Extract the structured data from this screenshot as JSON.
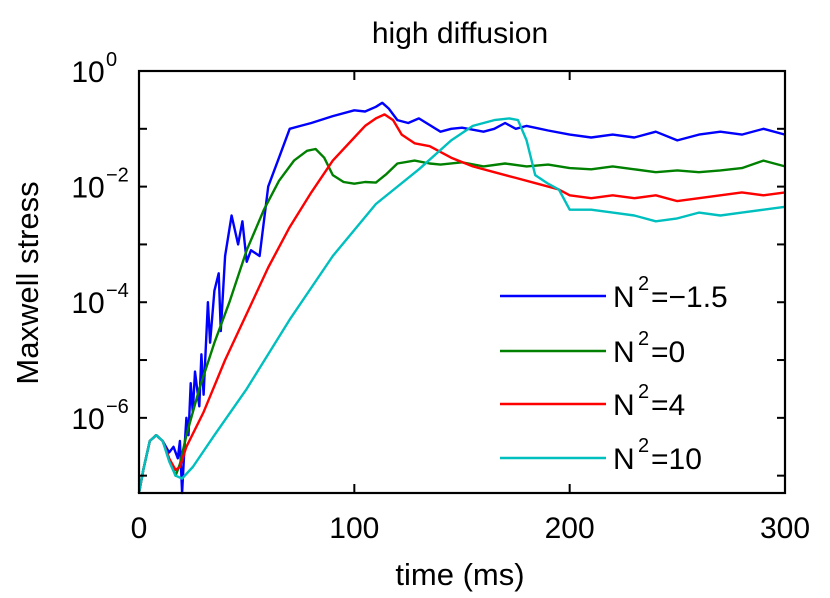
{
  "chart_data": {
    "type": "line",
    "title": "high diffusion",
    "xlabel": "time (ms)",
    "ylabel": "Maxwell stress",
    "xlim": [
      0,
      300
    ],
    "ylim_log10": [
      -7.3,
      0
    ],
    "y_scale": "log",
    "grid": false,
    "legend_position": "bottom-right",
    "x_ticks": [
      {
        "value": 0,
        "label": "0"
      },
      {
        "value": 100,
        "label": "100"
      },
      {
        "value": 200,
        "label": "200"
      },
      {
        "value": 300,
        "label": "300"
      }
    ],
    "y_ticks": [
      {
        "exp": 0,
        "base": "10",
        "sup": "0"
      },
      {
        "exp": -2,
        "base": "10",
        "sup": "−2"
      },
      {
        "exp": -4,
        "base": "10",
        "sup": "−4"
      },
      {
        "exp": -6,
        "base": "10",
        "sup": "−6"
      }
    ],
    "series": [
      {
        "name": "N2=-1.5",
        "legend_base": "N",
        "legend_sup": "2",
        "legend_rest": "=−1.5",
        "color": "#0000ff",
        "points_log10": [
          [
            0,
            -7.3
          ],
          [
            2,
            -6.9
          ],
          [
            5,
            -6.4
          ],
          [
            8,
            -6.3
          ],
          [
            11,
            -6.4
          ],
          [
            14,
            -6.6
          ],
          [
            16,
            -6.5
          ],
          [
            18,
            -6.7
          ],
          [
            19,
            -6.4
          ],
          [
            20,
            -7.3
          ],
          [
            21,
            -6.6
          ],
          [
            22,
            -6.0
          ],
          [
            23,
            -6.3
          ],
          [
            24,
            -5.4
          ],
          [
            25,
            -5.9
          ],
          [
            26,
            -5.2
          ],
          [
            28,
            -5.8
          ],
          [
            29,
            -4.9
          ],
          [
            30,
            -5.6
          ],
          [
            32,
            -4.0
          ],
          [
            33,
            -4.7
          ],
          [
            35,
            -3.8
          ],
          [
            37,
            -3.5
          ],
          [
            38,
            -4.5
          ],
          [
            40,
            -3.2
          ],
          [
            43,
            -2.5
          ],
          [
            46,
            -3.0
          ],
          [
            48,
            -2.6
          ],
          [
            50,
            -3.3
          ],
          [
            52,
            -3.1
          ],
          [
            56,
            -3.2
          ],
          [
            60,
            -2.0
          ],
          [
            65,
            -1.5
          ],
          [
            70,
            -1.0
          ],
          [
            75,
            -0.95
          ],
          [
            80,
            -0.9
          ],
          [
            90,
            -0.78
          ],
          [
            100,
            -0.68
          ],
          [
            105,
            -0.7
          ],
          [
            110,
            -0.62
          ],
          [
            113,
            -0.55
          ],
          [
            116,
            -0.65
          ],
          [
            120,
            -0.85
          ],
          [
            125,
            -0.9
          ],
          [
            130,
            -0.82
          ],
          [
            140,
            -1.05
          ],
          [
            145,
            -1.0
          ],
          [
            150,
            -0.98
          ],
          [
            160,
            -1.05
          ],
          [
            165,
            -1.0
          ],
          [
            170,
            -0.9
          ],
          [
            175,
            -1.0
          ],
          [
            180,
            -0.95
          ],
          [
            190,
            -1.03
          ],
          [
            200,
            -1.1
          ],
          [
            210,
            -1.15
          ],
          [
            220,
            -1.1
          ],
          [
            230,
            -1.15
          ],
          [
            240,
            -1.05
          ],
          [
            250,
            -1.2
          ],
          [
            260,
            -1.1
          ],
          [
            270,
            -1.05
          ],
          [
            280,
            -1.1
          ],
          [
            290,
            -1.0
          ],
          [
            300,
            -1.1
          ]
        ]
      },
      {
        "name": "N2=0",
        "legend_base": "N",
        "legend_sup": "2",
        "legend_rest": "=0",
        "color": "#008000",
        "points_log10": [
          [
            0,
            -7.3
          ],
          [
            2,
            -6.9
          ],
          [
            5,
            -6.4
          ],
          [
            8,
            -6.3
          ],
          [
            11,
            -6.4
          ],
          [
            14,
            -6.7
          ],
          [
            17,
            -7.0
          ],
          [
            19,
            -6.8
          ],
          [
            22,
            -6.3
          ],
          [
            28,
            -5.5
          ],
          [
            35,
            -4.7
          ],
          [
            42,
            -4.0
          ],
          [
            50,
            -3.1
          ],
          [
            58,
            -2.4
          ],
          [
            65,
            -1.9
          ],
          [
            72,
            -1.55
          ],
          [
            78,
            -1.38
          ],
          [
            82,
            -1.35
          ],
          [
            86,
            -1.5
          ],
          [
            90,
            -1.8
          ],
          [
            95,
            -1.92
          ],
          [
            100,
            -1.95
          ],
          [
            105,
            -1.92
          ],
          [
            110,
            -1.93
          ],
          [
            115,
            -1.78
          ],
          [
            120,
            -1.6
          ],
          [
            128,
            -1.55
          ],
          [
            135,
            -1.6
          ],
          [
            140,
            -1.62
          ],
          [
            150,
            -1.58
          ],
          [
            160,
            -1.65
          ],
          [
            170,
            -1.6
          ],
          [
            180,
            -1.65
          ],
          [
            190,
            -1.62
          ],
          [
            200,
            -1.68
          ],
          [
            210,
            -1.7
          ],
          [
            220,
            -1.65
          ],
          [
            230,
            -1.7
          ],
          [
            240,
            -1.75
          ],
          [
            250,
            -1.72
          ],
          [
            260,
            -1.75
          ],
          [
            270,
            -1.72
          ],
          [
            280,
            -1.68
          ],
          [
            290,
            -1.55
          ],
          [
            295,
            -1.6
          ],
          [
            300,
            -1.65
          ]
        ]
      },
      {
        "name": "N2=4",
        "legend_base": "N",
        "legend_sup": "2",
        "legend_rest": "=4",
        "color": "#ff0000",
        "points_log10": [
          [
            0,
            -7.3
          ],
          [
            2,
            -6.9
          ],
          [
            5,
            -6.4
          ],
          [
            8,
            -6.3
          ],
          [
            11,
            -6.4
          ],
          [
            14,
            -6.7
          ],
          [
            17,
            -6.9
          ],
          [
            19,
            -6.85
          ],
          [
            22,
            -6.5
          ],
          [
            30,
            -5.9
          ],
          [
            40,
            -5.0
          ],
          [
            50,
            -4.2
          ],
          [
            60,
            -3.4
          ],
          [
            70,
            -2.7
          ],
          [
            80,
            -2.1
          ],
          [
            90,
            -1.55
          ],
          [
            100,
            -1.15
          ],
          [
            105,
            -0.95
          ],
          [
            110,
            -0.82
          ],
          [
            114,
            -0.75
          ],
          [
            118,
            -0.85
          ],
          [
            122,
            -1.1
          ],
          [
            128,
            -1.25
          ],
          [
            135,
            -1.3
          ],
          [
            145,
            -1.5
          ],
          [
            155,
            -1.65
          ],
          [
            165,
            -1.75
          ],
          [
            175,
            -1.85
          ],
          [
            185,
            -1.95
          ],
          [
            195,
            -2.05
          ],
          [
            200,
            -2.15
          ],
          [
            210,
            -2.2
          ],
          [
            220,
            -2.15
          ],
          [
            230,
            -2.2
          ],
          [
            240,
            -2.15
          ],
          [
            250,
            -2.25
          ],
          [
            260,
            -2.2
          ],
          [
            270,
            -2.15
          ],
          [
            280,
            -2.1
          ],
          [
            290,
            -2.15
          ],
          [
            300,
            -2.1
          ]
        ]
      },
      {
        "name": "N2=10",
        "legend_base": "N",
        "legend_sup": "2",
        "legend_rest": "=10",
        "color": "#00bfbf",
        "points_log10": [
          [
            0,
            -7.3
          ],
          [
            2,
            -6.9
          ],
          [
            5,
            -6.4
          ],
          [
            8,
            -6.3
          ],
          [
            11,
            -6.4
          ],
          [
            14,
            -6.75
          ],
          [
            17,
            -7.0
          ],
          [
            20,
            -7.05
          ],
          [
            25,
            -6.85
          ],
          [
            35,
            -6.3
          ],
          [
            50,
            -5.5
          ],
          [
            70,
            -4.3
          ],
          [
            90,
            -3.2
          ],
          [
            110,
            -2.3
          ],
          [
            130,
            -1.7
          ],
          [
            145,
            -1.2
          ],
          [
            155,
            -0.95
          ],
          [
            165,
            -0.85
          ],
          [
            172,
            -0.82
          ],
          [
            176,
            -0.85
          ],
          [
            180,
            -1.2
          ],
          [
            184,
            -1.8
          ],
          [
            190,
            -1.95
          ],
          [
            195,
            -2.05
          ],
          [
            200,
            -2.4
          ],
          [
            210,
            -2.4
          ],
          [
            220,
            -2.45
          ],
          [
            230,
            -2.5
          ],
          [
            240,
            -2.6
          ],
          [
            250,
            -2.55
          ],
          [
            260,
            -2.45
          ],
          [
            270,
            -2.5
          ],
          [
            280,
            -2.45
          ],
          [
            290,
            -2.4
          ],
          [
            300,
            -2.35
          ]
        ]
      }
    ]
  }
}
